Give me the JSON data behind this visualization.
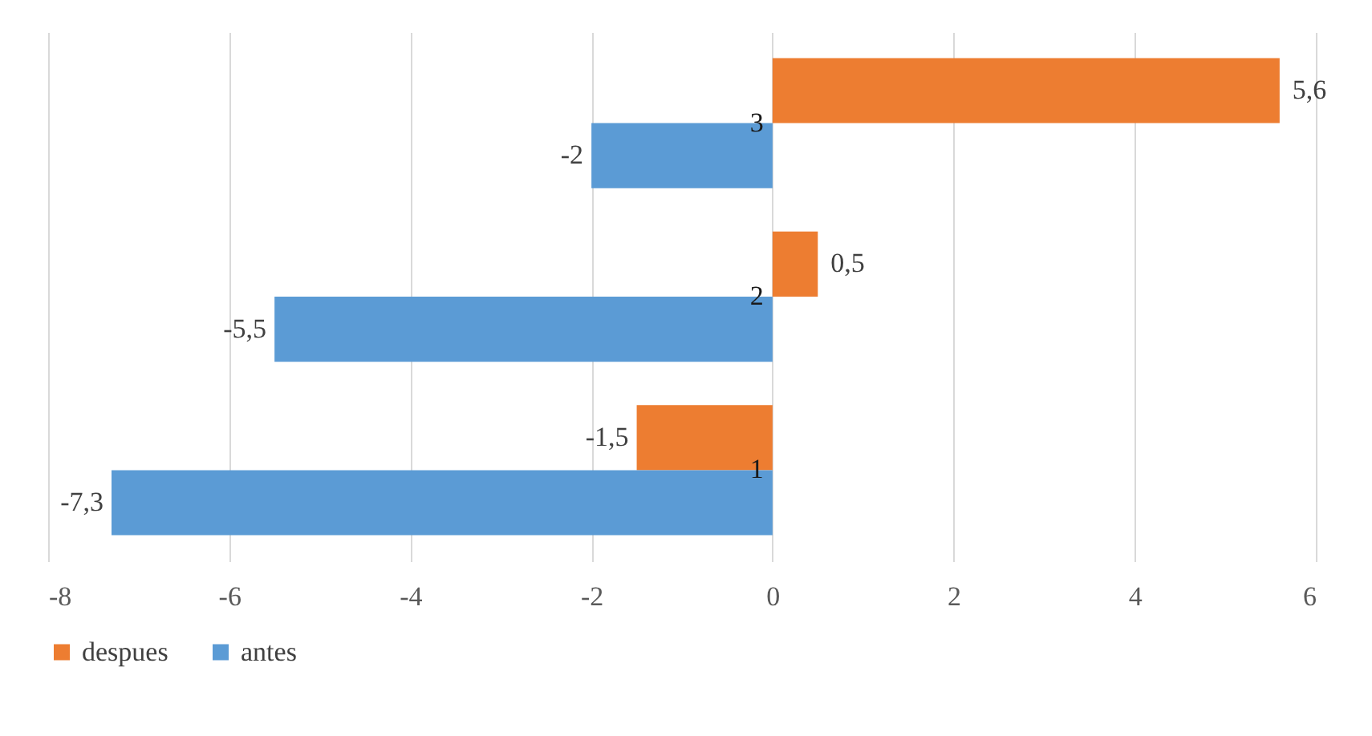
{
  "chart_data": {
    "type": "bar",
    "orientation": "horizontal",
    "categories": [
      "3",
      "2",
      "1"
    ],
    "series": [
      {
        "name": "despues",
        "color": "#ed7d31",
        "values": [
          5.6,
          0.5,
          -1.5
        ],
        "value_labels": [
          "5,6",
          "0,5",
          "-1,5"
        ]
      },
      {
        "name": "antes",
        "color": "#5b9bd5",
        "values": [
          -2,
          -5.5,
          -7.3
        ],
        "value_labels": [
          "-2",
          "-5,5",
          "-7,3"
        ]
      }
    ],
    "xlim": [
      -8,
      6
    ],
    "xticks": [
      -8,
      -6,
      -4,
      -2,
      0,
      2,
      4,
      6
    ],
    "grid": "x",
    "legend": "bottom"
  }
}
